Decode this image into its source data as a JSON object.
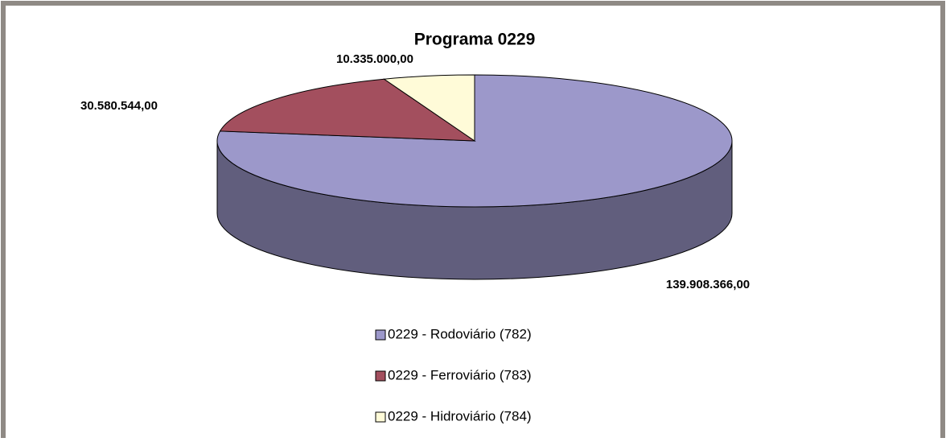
{
  "chart_data": {
    "type": "pie",
    "title": "Programa 0229",
    "categories": [
      "0229 - Rodoviário (782)",
      "0229 - Ferroviário (783)",
      "0229 - Hidroviário (784)"
    ],
    "values": [
      139908366,
      30580544,
      10335000
    ],
    "value_labels": [
      "139.908.366,00",
      "30.580.544,00",
      "10.335.000,00"
    ],
    "colors": [
      "#9c98ca",
      "#a34f5e",
      "#fffbd8"
    ],
    "legend": "bottom"
  }
}
